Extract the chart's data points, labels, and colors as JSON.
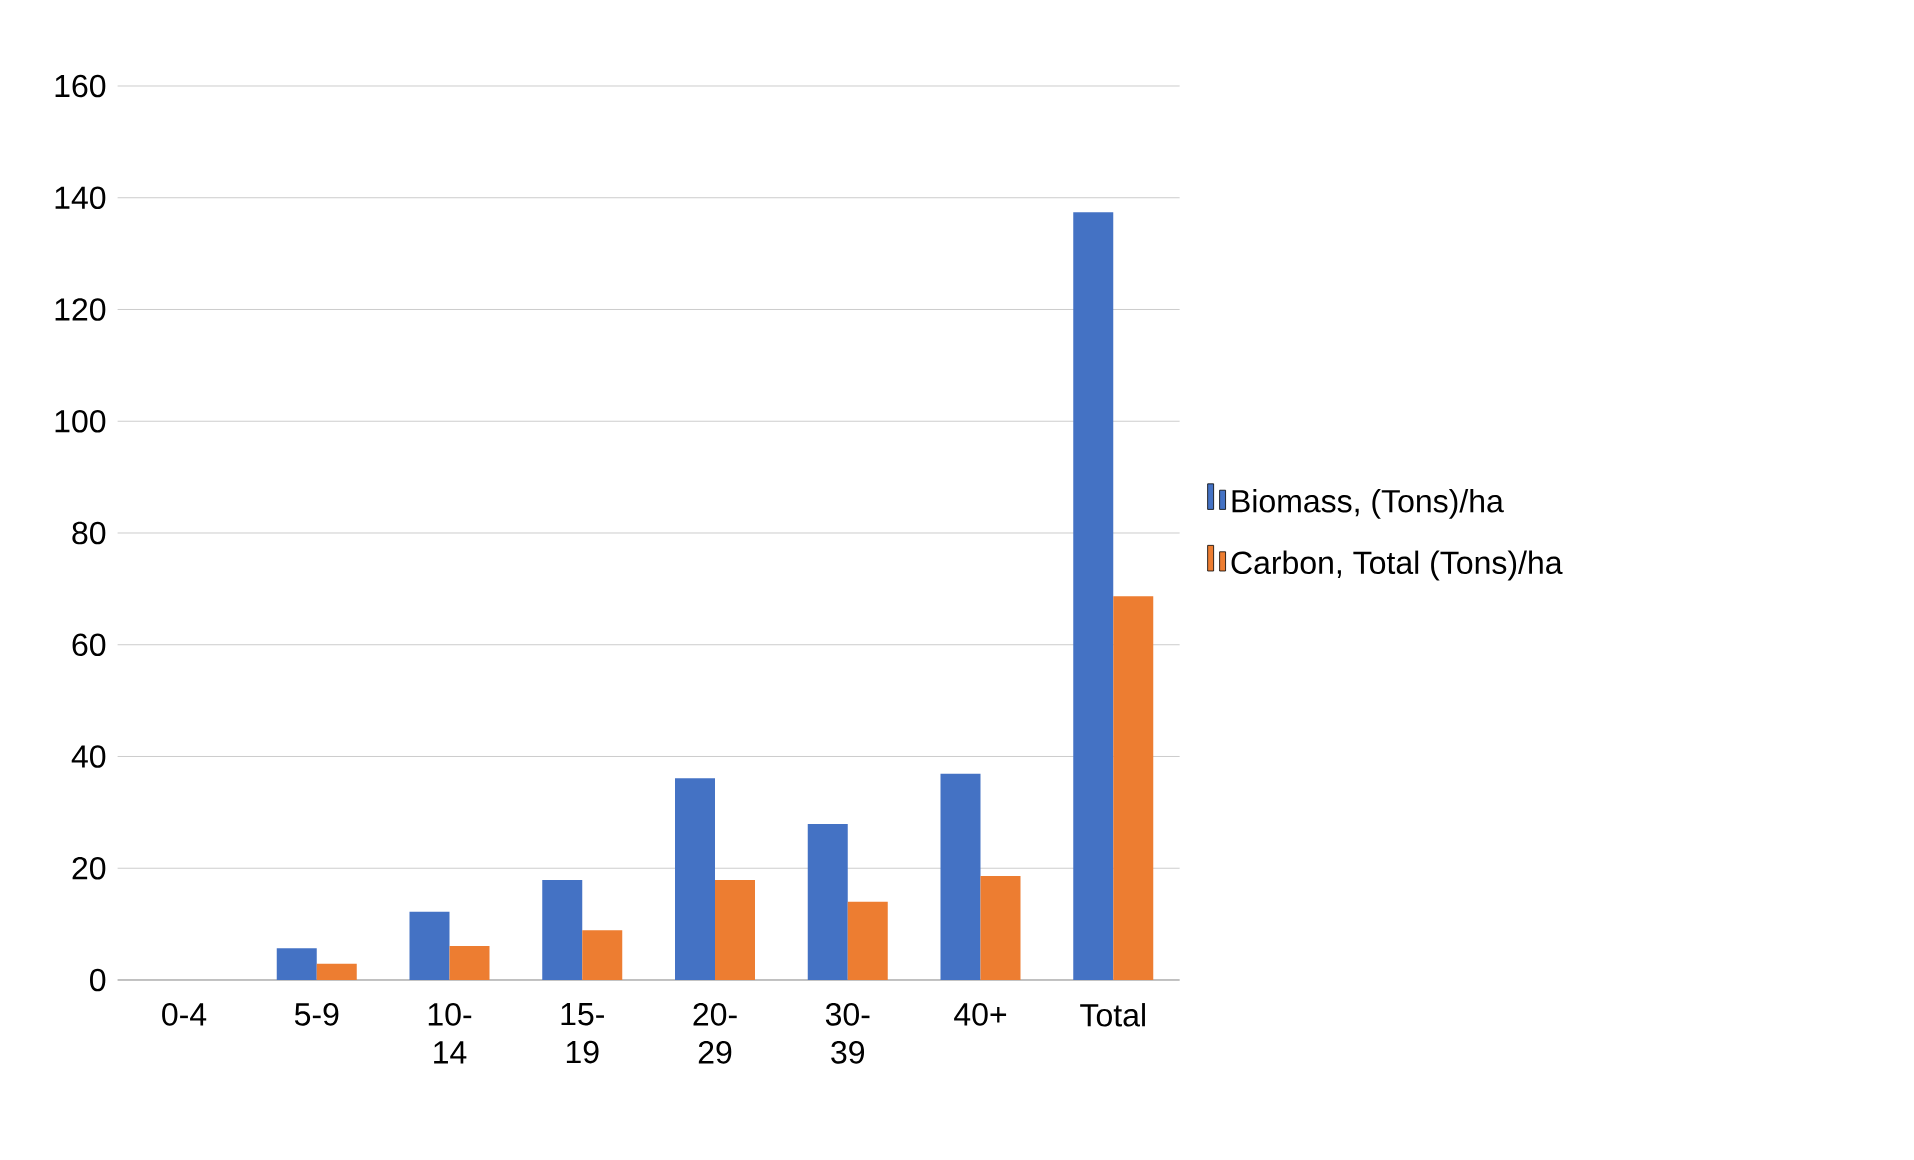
{
  "chart_data": {
    "type": "bar",
    "categories": [
      "0-4",
      "5-9",
      "10-14",
      "15-19",
      "20-29",
      "30-39",
      "40+",
      "Total"
    ],
    "series": [
      {
        "name": "Biomass, (Tons)/ha",
        "color": "#4472c4",
        "values": [
          0,
          5.7,
          12.2,
          17.9,
          36.1,
          27.9,
          36.9,
          137.4
        ]
      },
      {
        "name": "Carbon, Total (Tons)/ha",
        "color": "#ed7d31",
        "values": [
          0,
          2.9,
          6.1,
          8.9,
          17.9,
          14,
          18.6,
          68.7
        ]
      }
    ],
    "ylim": [
      0,
      160
    ],
    "yticks": [
      0,
      20,
      40,
      60,
      80,
      100,
      120,
      140,
      160
    ],
    "grid": "y",
    "legend": "right"
  }
}
